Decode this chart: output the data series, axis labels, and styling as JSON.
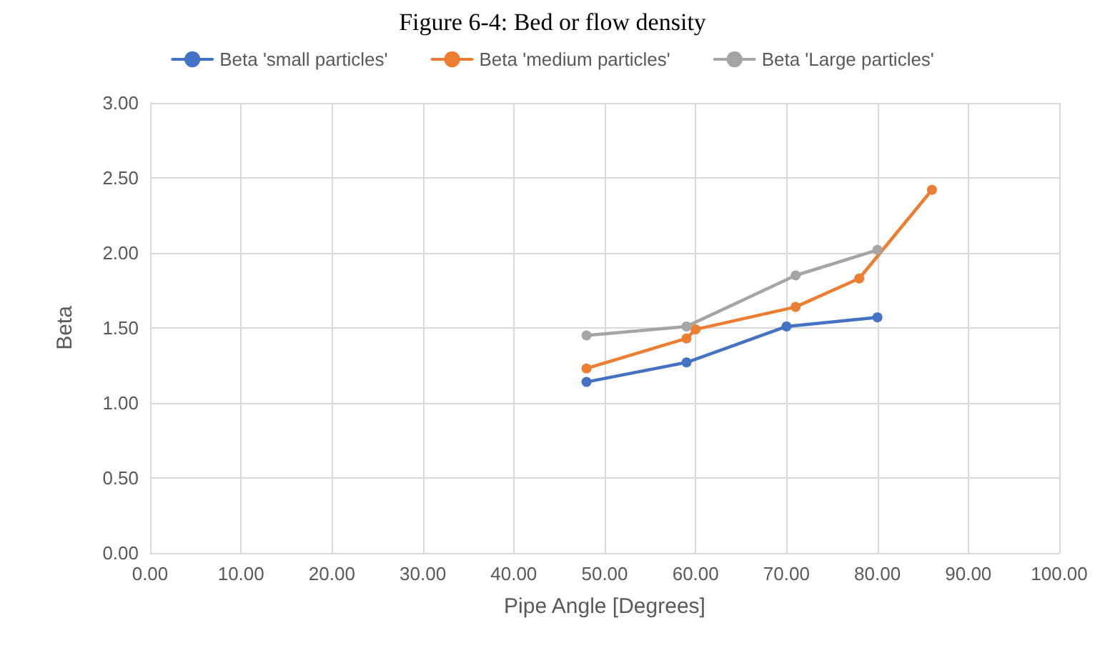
{
  "chart_data": {
    "type": "line",
    "title": "Figure 6-4: Bed or flow density",
    "xlabel": "Pipe Angle [Degrees]",
    "ylabel": "Beta",
    "series": [
      {
        "name": "Beta 'small particles'",
        "color": "#4472c4",
        "x": [
          48,
          59,
          70,
          80
        ],
        "values": [
          1.14,
          1.27,
          1.51,
          1.57
        ]
      },
      {
        "name": "Beta 'medium particles'",
        "color": "#ed7d31",
        "x": [
          48,
          59,
          60,
          71,
          78,
          86
        ],
        "values": [
          1.23,
          1.43,
          1.49,
          1.64,
          1.83,
          2.42
        ]
      },
      {
        "name": "Beta 'Large particles'",
        "color": "#a5a5a5",
        "x": [
          48,
          59,
          71,
          80
        ],
        "values": [
          1.45,
          1.51,
          1.85,
          2.02
        ]
      }
    ],
    "xlim": [
      0,
      100
    ],
    "xticks": [
      {
        "value": 0,
        "label": "0.00"
      },
      {
        "value": 10,
        "label": "10.00"
      },
      {
        "value": 20,
        "label": "20.00"
      },
      {
        "value": 30,
        "label": "30.00"
      },
      {
        "value": 40,
        "label": "40.00"
      },
      {
        "value": 50,
        "label": "50.00"
      },
      {
        "value": 60,
        "label": "60.00"
      },
      {
        "value": 70,
        "label": "70.00"
      },
      {
        "value": 80,
        "label": "80.00"
      },
      {
        "value": 90,
        "label": "90.00"
      },
      {
        "value": 100,
        "label": "100.00"
      }
    ],
    "ylim": [
      0,
      3
    ],
    "yticks": [
      {
        "value": 0,
        "label": "0.00"
      },
      {
        "value": 0.5,
        "label": "0.50"
      },
      {
        "value": 1,
        "label": "1.00"
      },
      {
        "value": 1.5,
        "label": "1.50"
      },
      {
        "value": 2,
        "label": "2.00"
      },
      {
        "value": 2.5,
        "label": "2.50"
      },
      {
        "value": 3,
        "label": "3.00"
      }
    ],
    "grid": true,
    "legend": "top",
    "marker": "circle",
    "line_style": "solid"
  }
}
